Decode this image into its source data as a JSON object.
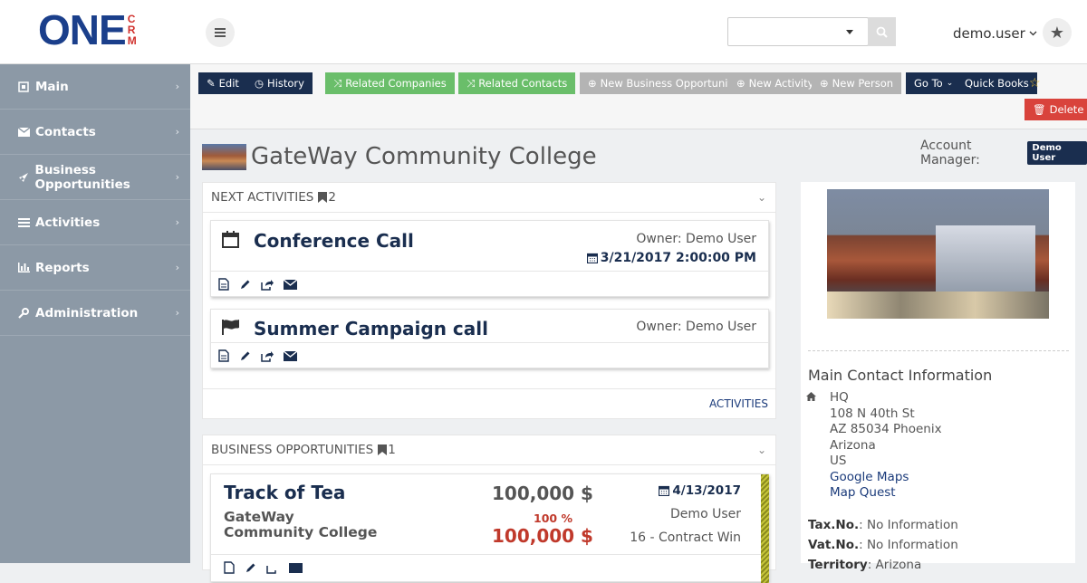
{
  "header": {
    "logo_main": "ONE",
    "logo_sub": "CRM",
    "user_name": "demo.user",
    "search_value": ""
  },
  "sidebar": {
    "items": [
      {
        "label": "Main",
        "icon": "main-icon"
      },
      {
        "label": "Contacts",
        "icon": "envelope-icon"
      },
      {
        "label": "Business Opportunities",
        "icon": "rocket-icon"
      },
      {
        "label": "Activities",
        "icon": "list-icon"
      },
      {
        "label": "Reports",
        "icon": "bar-chart-icon"
      },
      {
        "label": "Administration",
        "icon": "wrench-icon"
      }
    ]
  },
  "toolbar": {
    "edit": "Edit",
    "history": "History",
    "related_companies": "Related Companies",
    "related_contacts": "Related Contacts",
    "new_business_opportunity": "New Business Opportunity",
    "new_activity": "New Activity",
    "new_person": "New Person",
    "go_to": "Go To",
    "quick_books": "Quick Books",
    "delete": "Delete"
  },
  "page": {
    "title": "GateWay Community College",
    "account_manager_label": "Account Manager:",
    "account_manager": "Demo User"
  },
  "next_activities": {
    "heading": "NEXT ACTIVITIES",
    "count": "2",
    "footer_link": "ACTIVITIES",
    "items": [
      {
        "title": "Conference Call",
        "owner": "Owner: Demo User",
        "date": "3/21/2017 2:00:00 PM",
        "icon": "calendar-icon"
      },
      {
        "title": "Summer Campaign call",
        "owner": "Owner: Demo User",
        "date": "",
        "icon": "flag-icon"
      }
    ]
  },
  "business_opportunities": {
    "heading": "BUSINESS OPPORTUNITIES",
    "count": "1",
    "items": [
      {
        "title": "Track of Tea",
        "company": "GateWay Community College",
        "amount": "100,000 $",
        "probability": "100 %",
        "weighted_amount": "100,000 $",
        "date": "4/13/2017",
        "owner": "Demo User",
        "stage": "16 - Contract Win"
      }
    ]
  },
  "contact_info": {
    "heading": "Main Contact Information",
    "address_type": "HQ",
    "street": "108 N 40th St",
    "city_line": "AZ 85034 Phoenix",
    "state": "Arizona",
    "country": "US",
    "google_maps": "Google Maps",
    "map_quest": "Map Quest",
    "tax_label": "Tax.No.",
    "tax_value": ": No Information",
    "vat_label": "Vat.No.",
    "vat_value": ": No Information",
    "territory_label": "Territory",
    "territory_value": ": Arizona"
  },
  "colors": {
    "navy": "#1a2e4f",
    "green": "#6abe6a",
    "grey_button": "#b4b4b4",
    "red": "#d9433c",
    "sidebar": "#8c99a6",
    "amount_red": "#c0392b"
  }
}
